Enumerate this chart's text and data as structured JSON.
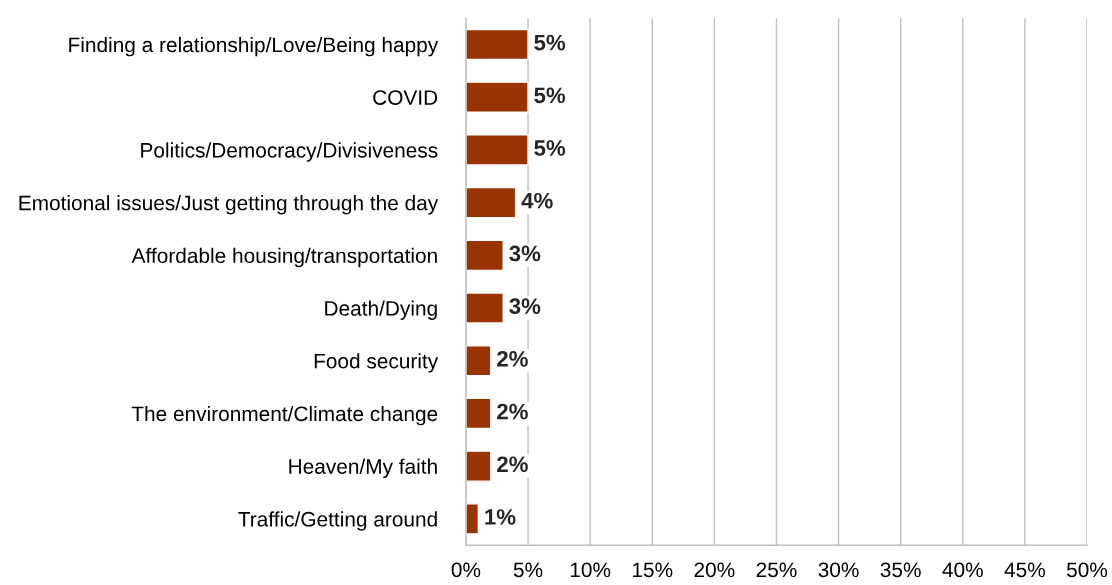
{
  "chart_data": {
    "type": "bar",
    "orientation": "horizontal",
    "categories": [
      "Finding a relationship/Love/Being happy",
      "COVID",
      "Politics/Democracy/Divisiveness",
      "Emotional issues/Just getting through the day",
      "Affordable housing/transportation",
      "Death/Dying",
      "Food security",
      "The environment/Climate change",
      "Heaven/My faith",
      "Traffic/Getting around"
    ],
    "values": [
      5,
      5,
      5,
      4,
      3,
      3,
      2,
      2,
      2,
      1
    ],
    "color": "#993300",
    "value_labels": [
      "5%",
      "5%",
      "5%",
      "4%",
      "3%",
      "3%",
      "2%",
      "2%",
      "2%",
      "1%"
    ],
    "xlim": [
      0,
      50
    ],
    "xticks": [
      {
        "value": 0,
        "label": "0%"
      },
      {
        "value": 5,
        "label": "5%"
      },
      {
        "value": 10,
        "label": "10%"
      },
      {
        "value": 15,
        "label": "15%"
      },
      {
        "value": 20,
        "label": "20%"
      },
      {
        "value": 25,
        "label": "25%"
      },
      {
        "value": 30,
        "label": "30%"
      },
      {
        "value": 35,
        "label": "35%"
      },
      {
        "value": 40,
        "label": "40%"
      },
      {
        "value": 45,
        "label": "45%"
      },
      {
        "value": 50,
        "label": "50%"
      }
    ],
    "grid": "x"
  }
}
